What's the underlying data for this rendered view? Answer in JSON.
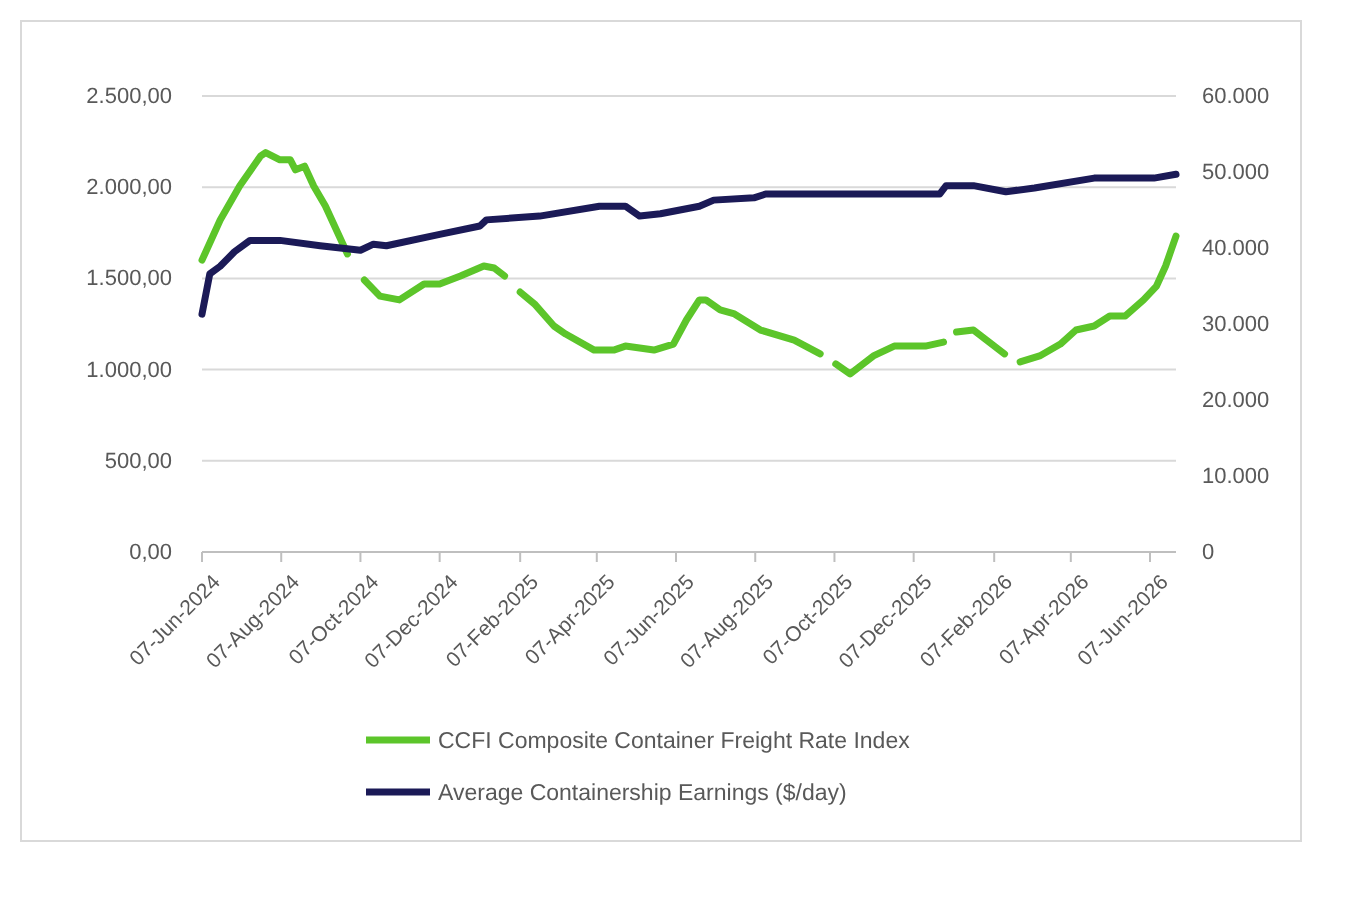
{
  "chart_data": {
    "type": "line",
    "legend": "bottom",
    "grid": "y",
    "xlim": [
      "2024-06-07",
      "2026-06-27"
    ],
    "xticks": [
      {
        "value": "2024-06-07",
        "label": "07-Jun-2024"
      },
      {
        "value": "2024-08-07",
        "label": "07-Aug-2024"
      },
      {
        "value": "2024-10-07",
        "label": "07-Oct-2024"
      },
      {
        "value": "2024-12-07",
        "label": "07-Dec-2024"
      },
      {
        "value": "2025-02-07",
        "label": "07-Feb-2025"
      },
      {
        "value": "2025-04-07",
        "label": "07-Apr-2025"
      },
      {
        "value": "2025-06-07",
        "label": "07-Jun-2025"
      },
      {
        "value": "2025-08-07",
        "label": "07-Aug-2025"
      },
      {
        "value": "2025-10-07",
        "label": "07-Oct-2025"
      },
      {
        "value": "2025-12-07",
        "label": "07-Dec-2025"
      },
      {
        "value": "2026-02-07",
        "label": "07-Feb-2026"
      },
      {
        "value": "2026-04-07",
        "label": "07-Apr-2026"
      },
      {
        "value": "2026-06-07",
        "label": "07-Jun-2026"
      }
    ],
    "ylim": [
      0,
      2500
    ],
    "yticks": [
      {
        "value": 0,
        "label": "0,00"
      },
      {
        "value": 500,
        "label": "500,00"
      },
      {
        "value": 1000,
        "label": "1.000,00"
      },
      {
        "value": 1500,
        "label": "1.500,00"
      },
      {
        "value": 2000,
        "label": "2.000,00"
      },
      {
        "value": 2500,
        "label": "2.500,00"
      }
    ],
    "y2lim": [
      0,
      60000
    ],
    "y2ticks": [
      0,
      {
        "value": 10000,
        "label": "10.000"
      },
      {
        "value": 20000,
        "label": "20.000"
      },
      {
        "value": 30000,
        "label": "30.000"
      },
      {
        "value": 40000,
        "label": "40.000"
      },
      {
        "value": 50000,
        "label": "50.000"
      },
      {
        "value": 60000,
        "label": "60.000"
      }
    ],
    "series": [
      {
        "name": "CCFI Composite Container Freight Rate Index",
        "color": "#5cc52a",
        "x": [
          "2024-06-07",
          "2024-06-21",
          "2024-07-06",
          "2024-07-22",
          "2024-07-26",
          "2024-08-06",
          "2024-08-14",
          "2024-08-18",
          "2024-08-25",
          "2024-09-01",
          "2024-09-10",
          "2024-09-27",
          "2024-10-02",
          "2024-10-10",
          "2024-10-22",
          "2024-11-06",
          "2024-11-25",
          "2024-12-07",
          "2024-12-23",
          "2025-01-10",
          "2025-01-18",
          "2025-01-26",
          "2025-02-01",
          "2025-02-07",
          "2025-02-18",
          "2025-03-05",
          "2025-03-14",
          "2025-04-05",
          "2025-04-20",
          "2025-04-29",
          "2025-05-21",
          "2025-06-05",
          "2025-06-15",
          "2025-06-25",
          "2025-06-30",
          "2025-07-11",
          "2025-07-22",
          "2025-08-11",
          "2025-09-06",
          "2025-09-26",
          "2025-10-02",
          "2025-10-08",
          "2025-10-19",
          "2025-11-06",
          "2025-11-22",
          "2025-12-16",
          "2025-12-30",
          "2026-01-04",
          "2026-01-09",
          "2026-01-22",
          "2026-02-01",
          "2026-02-15",
          "2026-02-21",
          "2026-02-27",
          "2026-03-14",
          "2026-03-30",
          "2026-04-11",
          "2026-04-25",
          "2026-05-07",
          "2026-05-19",
          "2026-06-02",
          "2026-06-12",
          "2026-06-19",
          "2026-06-27"
        ],
        "values": [
          1600,
          1820,
          2007,
          2170,
          2190,
          2150,
          2150,
          2095,
          2115,
          2007,
          1897,
          1634,
          null,
          1491,
          1403,
          1382,
          1469,
          1469,
          1513,
          1568,
          1557,
          1513,
          null,
          1425,
          1360,
          1239,
          1195,
          1107,
          1107,
          1129,
          1107,
          1140,
          1272,
          1382,
          1382,
          1327,
          1305,
          1217,
          1162,
          1086,
          null,
          1031,
          976,
          1075,
          1129,
          1129,
          1151,
          null,
          1206,
          1217,
          1162,
          1086,
          null,
          1042,
          1075,
          1140,
          1217,
          1239,
          1294,
          1294,
          1382,
          1458,
          1568,
          1732
        ]
      },
      {
        "name": "Average Containership Earnings ($/day)",
        "color": "#1b1a57",
        "axis": "y2",
        "x": [
          "2024-06-07",
          "2024-06-13",
          "2024-06-21",
          "2024-07-02",
          "2024-07-14",
          "2024-08-06",
          "2024-09-06",
          "2024-10-07",
          "2024-10-17",
          "2024-10-27",
          "2024-12-07",
          "2025-01-07",
          "2025-01-12",
          "2025-02-22",
          "2025-04-09",
          "2025-04-29",
          "2025-05-10",
          "2025-05-26",
          "2025-06-25",
          "2025-07-06",
          "2025-08-06",
          "2025-08-15",
          "2025-12-27",
          "2026-01-01",
          "2026-01-22",
          "2026-02-16",
          "2026-03-10",
          "2026-04-25",
          "2026-06-10",
          "2026-06-27"
        ],
        "values": [
          31300,
          36600,
          37600,
          39500,
          41000,
          41000,
          40300,
          39700,
          40500,
          40300,
          41800,
          42900,
          43700,
          44200,
          45500,
          45500,
          44200,
          44500,
          45500,
          46300,
          46600,
          47100,
          47100,
          48200,
          48200,
          47400,
          47900,
          49200,
          49200,
          49700
        ]
      }
    ]
  }
}
